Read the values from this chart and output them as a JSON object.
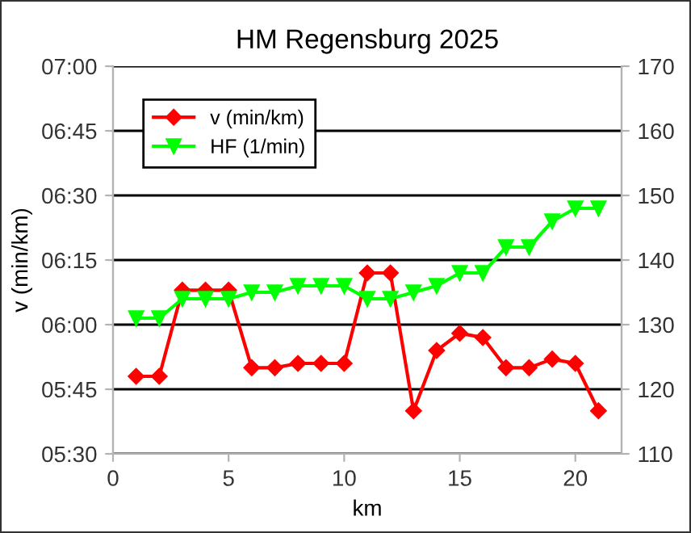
{
  "chart_data": {
    "type": "line",
    "title": "HM Regensburg 2025",
    "xlabel": "km",
    "ylabel": "v (min/km)",
    "x": [
      1,
      2,
      3,
      4,
      5,
      6,
      7,
      8,
      9,
      10,
      11,
      12,
      13,
      14,
      15,
      16,
      17,
      18,
      19,
      20,
      21
    ],
    "series": [
      {
        "name": "v (min/km)",
        "color": "#ff0000",
        "marker": "diamond",
        "values": [
          348,
          348,
          368,
          368,
          368,
          350,
          350,
          351,
          351,
          351,
          372,
          372,
          340,
          354,
          358,
          357,
          350,
          350,
          352,
          351,
          340
        ]
      },
      {
        "name": "HF (1/min)",
        "color": "#00ff00",
        "marker": "triangle",
        "axis": "y2",
        "values": [
          131,
          131,
          134,
          134,
          134,
          135,
          135,
          136,
          136,
          136,
          134,
          134,
          135,
          136,
          138,
          138,
          142,
          142,
          146,
          148,
          148
        ]
      }
    ],
    "xlim": [
      0,
      22
    ],
    "xticks": [
      0,
      5,
      10,
      15,
      20
    ],
    "ylim": [
      330,
      420
    ],
    "yticks": [
      {
        "value": 330,
        "label": "05:30"
      },
      {
        "value": 345,
        "label": "05:45"
      },
      {
        "value": 360,
        "label": "06:00"
      },
      {
        "value": 375,
        "label": "06:15"
      },
      {
        "value": 390,
        "label": "06:30"
      },
      {
        "value": 405,
        "label": "06:45"
      },
      {
        "value": 420,
        "label": "07:00"
      }
    ],
    "y2lim": [
      110,
      170
    ],
    "y2ticks": [
      110,
      120,
      130,
      140,
      150,
      160,
      170
    ],
    "grid": "y",
    "legend": "top left",
    "line_style": "solid"
  }
}
